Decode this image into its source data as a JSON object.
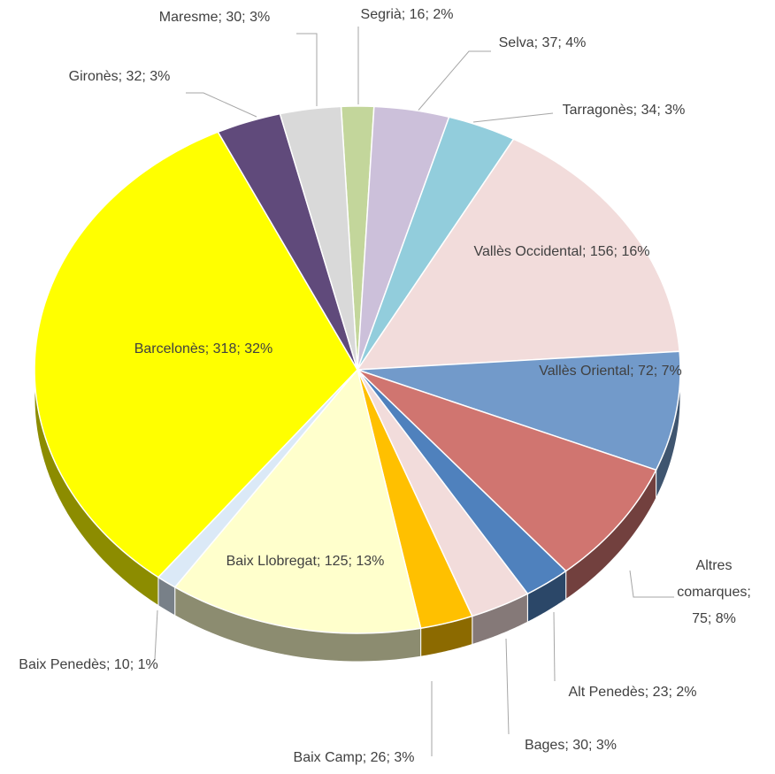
{
  "chart_data": {
    "type": "pie",
    "three_d": true,
    "label_separator": "; ",
    "categories": [
      "Segrià",
      "Selva",
      "Tarragonès",
      "Vallès Occidental",
      "Vallès Oriental",
      "Altres comarques",
      "Alt Penedès",
      "Bages",
      "Baix Camp",
      "Baix Llobregat",
      "Baix Penedès",
      "Barcelonès",
      "Gironès",
      "Maresme"
    ],
    "values": [
      16,
      37,
      34,
      156,
      72,
      75,
      23,
      30,
      26,
      125,
      10,
      318,
      32,
      30
    ],
    "value_labels": [
      "16; 2%",
      "37; 4%",
      "34; 3%",
      "156; 16%",
      "72; 7%",
      "75; 8%",
      "23; 2%",
      "30; 3%",
      "26; 3%",
      "125; 13%",
      "10; 1%",
      "318; 32%",
      "32; 3%",
      "30; 3%"
    ],
    "colors": [
      "#c3d69b",
      "#ccc0da",
      "#92cddc",
      "#f2dcdb",
      "#729aca",
      "#d07570",
      "#4f81bd",
      "#f2dcdb",
      "#ffc000",
      "#ffffcc",
      "#dbe9f7",
      "#ffff00",
      "#604a7b",
      "#d9d9d9"
    ]
  }
}
